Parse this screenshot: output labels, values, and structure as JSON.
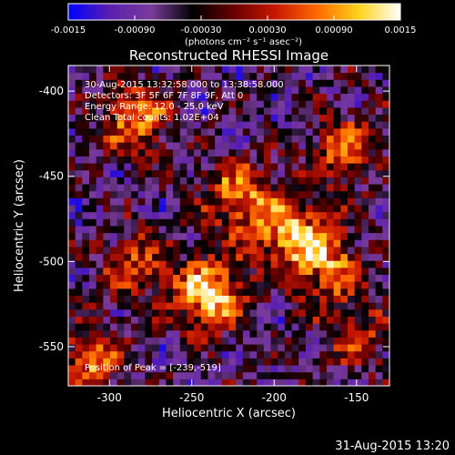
{
  "chart_data": {
    "type": "heatmap",
    "title": "Reconstructed RHESSI Image",
    "xlabel": "Heliocentric X (arcsec)",
    "ylabel": "Heliocentric Y (arcsec)",
    "xlim": [
      -325,
      -130
    ],
    "ylim": [
      -573,
      -385
    ],
    "x_ticks": [
      -300,
      -250,
      -200,
      -150
    ],
    "y_ticks": [
      -400,
      -450,
      -500,
      -550
    ],
    "colorbar": {
      "range": [
        -0.0015,
        0.0015
      ],
      "ticks": [
        -0.0015,
        -0.0009,
        -0.0003,
        0.0003,
        0.0009,
        0.0015
      ],
      "tick_labels": [
        "-0.0015",
        "-0.00090",
        "-0.00030",
        "0.00030",
        "0.00090",
        "0.0015"
      ],
      "units": "(photons cm⁻² s⁻¹ asec⁻²)",
      "colors": [
        "#0000ff",
        "#5a1fb0",
        "#7a3b9a",
        "#000000",
        "#6a0000",
        "#c81800",
        "#ff6a00",
        "#ffd21a",
        "#ffffff"
      ]
    },
    "sources": [
      {
        "x": -239,
        "y": -519,
        "peak": 0.0015
      },
      {
        "x": -192,
        "y": -481,
        "peak": 0.0012
      },
      {
        "x": -283,
        "y": -417,
        "peak": 0.0011
      },
      {
        "x": -222,
        "y": -461,
        "peak": 0.001
      },
      {
        "x": -168,
        "y": -501,
        "peak": 0.0011
      },
      {
        "x": -158,
        "y": -434,
        "peak": 0.0009
      },
      {
        "x": -312,
        "y": -558,
        "peak": 0.001
      },
      {
        "x": -285,
        "y": -502,
        "peak": 0.0008
      },
      {
        "x": -150,
        "y": -543,
        "peak": 0.0007
      }
    ]
  },
  "info_lines": [
    "30-Aug-2015 13:32:58.000 to 13:38:58.000",
    "Detectors: 3F 5F 6F 7F 8F 9F, Att 0",
    "Energy Range: 12.0 - 25.0 keV",
    "Clean    Total counts: 1.02E+04"
  ],
  "peak_label": "Position of Peak = [-239,-519]",
  "footer_timestamp": "31-Aug-2015 13:20"
}
